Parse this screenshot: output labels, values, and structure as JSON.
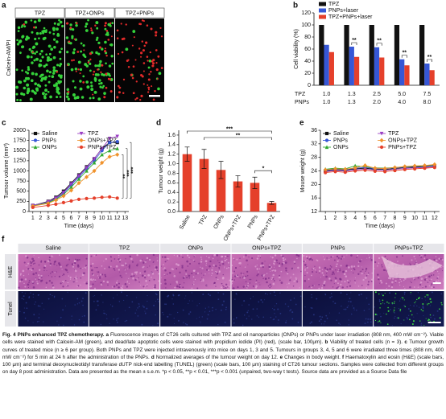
{
  "panel_a": {
    "label": "a",
    "ylabel": "Calcein-AM/PI",
    "columns": [
      "TPZ",
      "TPZ+ONPs",
      "TPZ+PNPs"
    ]
  },
  "chart_data": [
    {
      "panel_label": "b",
      "type": "grouped_bar",
      "ylabel": "Cell viability (%)",
      "ylim": [
        0,
        120
      ],
      "yticks": [
        0,
        20,
        40,
        60,
        80,
        100,
        120
      ],
      "series": [
        {
          "name": "TPZ",
          "color": "#111111",
          "values": [
            100,
            100,
            100,
            100,
            100
          ]
        },
        {
          "name": "PNPs+laser",
          "color": "#3657d6",
          "values": [
            67,
            64,
            63,
            43,
            36
          ]
        },
        {
          "name": "TPZ+PNPs+laser",
          "color": "#e5402b",
          "values": [
            55,
            47,
            46,
            33,
            25
          ]
        }
      ],
      "category_rows": [
        {
          "name": "TPZ",
          "labels": [
            "1.0",
            "1.3",
            "2.5",
            "5.0",
            "7.5"
          ]
        },
        {
          "name": "PNPs",
          "labels": [
            "1.0",
            "1.3",
            "2.0",
            "4.0",
            "8.0"
          ]
        }
      ],
      "annotations": [
        "**",
        "**",
        "**",
        "**"
      ]
    },
    {
      "panel_label": "c",
      "type": "line",
      "ylabel": "Tumour volume (mm³)",
      "xlabel": "Time (days)",
      "x": [
        1,
        3,
        4,
        5,
        6,
        7,
        8,
        9,
        10,
        11,
        12
      ],
      "xlim": [
        0.5,
        13.5
      ],
      "xticks": [
        1,
        2,
        3,
        4,
        5,
        6,
        7,
        8,
        9,
        10,
        11,
        12,
        13
      ],
      "ylim": [
        0,
        2000
      ],
      "yticks": [
        0,
        250,
        500,
        750,
        1000,
        1250,
        1500,
        1750,
        2000
      ],
      "series": [
        {
          "name": "Saline",
          "color": "#111111",
          "marker": "square",
          "values": [
            150,
            250,
            350,
            500,
            700,
            900,
            1100,
            1300,
            1550,
            1700,
            1700
          ]
        },
        {
          "name": "PNPs",
          "color": "#3657d6",
          "marker": "circle",
          "values": [
            150,
            230,
            320,
            450,
            650,
            850,
            1050,
            1250,
            1500,
            1700,
            1720
          ]
        },
        {
          "name": "ONPs",
          "color": "#2fa82f",
          "marker": "triangle-up",
          "values": [
            140,
            220,
            300,
            420,
            600,
            800,
            1000,
            1200,
            1400,
            1500,
            1550
          ]
        },
        {
          "name": "TPZ",
          "color": "#9b3fc4",
          "marker": "triangle-down",
          "values": [
            150,
            240,
            330,
            470,
            680,
            880,
            1080,
            1300,
            1550,
            1800,
            1850
          ]
        },
        {
          "name": "ONPs+TPZ",
          "color": "#f0922b",
          "marker": "diamond",
          "values": [
            130,
            200,
            280,
            380,
            520,
            700,
            850,
            1000,
            1200,
            1350,
            1400
          ]
        },
        {
          "name": "PNPs+TPZ",
          "color": "#e5402b",
          "marker": "circle",
          "values": [
            100,
            150,
            180,
            220,
            260,
            300,
            320,
            330,
            350,
            360,
            330
          ]
        }
      ],
      "annotations": [
        "**",
        "***",
        "***"
      ]
    },
    {
      "panel_label": "d",
      "type": "bar",
      "ylabel": "Tumour weight (g)",
      "categories": [
        "Saline",
        "TPZ",
        "ONPs",
        "ONPs+TPZ",
        "PNPs",
        "PNPs+TPZ"
      ],
      "values": [
        1.2,
        1.1,
        0.87,
        0.63,
        0.6,
        0.18
      ],
      "errors": [
        0.15,
        0.2,
        0.18,
        0.12,
        0.12,
        0.03
      ],
      "color": "#e5402b",
      "ylim": [
        0,
        1.7
      ],
      "yticks": [
        {
          "value": 0,
          "label": "0.0"
        },
        {
          "value": 0.2,
          "label": "0.2"
        },
        {
          "value": 0.4,
          "label": "0.4"
        },
        {
          "value": 0.6,
          "label": "0.6"
        },
        {
          "value": 0.8,
          "label": "0.8"
        },
        {
          "value": 1,
          "label": "1.0"
        },
        {
          "value": 1.2,
          "label": "1.2"
        },
        {
          "value": 1.4,
          "label": "1.4"
        },
        {
          "value": 1.6,
          "label": "1.6"
        }
      ],
      "annotations": [
        "***",
        "**",
        "*"
      ]
    },
    {
      "panel_label": "e",
      "type": "line",
      "ylabel": "Mouse weight (g)",
      "xlabel": "Time (days)",
      "x": [
        1,
        2,
        3,
        4,
        5,
        6,
        7,
        8,
        9,
        10,
        11,
        12
      ],
      "xlim": [
        0.5,
        12.5
      ],
      "xticks": [
        1,
        2,
        3,
        4,
        5,
        6,
        7,
        8,
        9,
        10,
        11,
        12
      ],
      "ylim": [
        12,
        36
      ],
      "yticks": [
        12,
        16,
        20,
        24,
        28,
        32,
        36
      ],
      "series": [
        {
          "name": "Saline",
          "color": "#111111",
          "marker": "square",
          "values": [
            24,
            24.3,
            24.2,
            24.6,
            24.8,
            24.5,
            24.4,
            24.7,
            25,
            25.1,
            25.3,
            25.5
          ]
        },
        {
          "name": "PNPs",
          "color": "#3657d6",
          "marker": "circle",
          "values": [
            24.2,
            24.5,
            24.4,
            24.8,
            25,
            24.7,
            24.6,
            24.9,
            25.1,
            25.3,
            25.4,
            25.6
          ]
        },
        {
          "name": "ONPs",
          "color": "#2fa82f",
          "marker": "triangle-up",
          "values": [
            24.5,
            24.8,
            24.6,
            25.5,
            25.2,
            24.9,
            24.8,
            25,
            25.2,
            25.4,
            25.5,
            25.8
          ]
        },
        {
          "name": "TPZ",
          "color": "#9b3fc4",
          "marker": "triangle-down",
          "values": [
            23.8,
            24.1,
            24,
            24.3,
            24.5,
            24.3,
            24.2,
            24.5,
            24.7,
            24.9,
            25,
            25.2
          ]
        },
        {
          "name": "ONPs+TPZ",
          "color": "#f0922b",
          "marker": "diamond",
          "values": [
            24.3,
            24.6,
            24.5,
            24.9,
            25.6,
            24.8,
            24.7,
            25,
            25.3,
            25.5,
            25.6,
            25.9
          ]
        },
        {
          "name": "PNPs+TPZ",
          "color": "#e5402b",
          "marker": "circle",
          "values": [
            23.5,
            23.8,
            23.6,
            24,
            24.2,
            23.9,
            23.8,
            24.1,
            24.4,
            24.6,
            24.8,
            25
          ]
        }
      ]
    }
  ],
  "panel_f": {
    "label": "f",
    "columns": [
      "Saline",
      "TPZ",
      "ONPs",
      "ONPs+TPZ",
      "PNPs",
      "PNPs+TPZ"
    ],
    "rows": [
      "H&E",
      "Tunel"
    ]
  },
  "caption": [
    {
      "text": "Fig. 4",
      "bold": true
    },
    {
      "text": " "
    },
    {
      "text": "PNPs enhanced TPZ chemotherapy.",
      "bold": true
    },
    {
      "text": " "
    },
    {
      "text": "a",
      "bold": true
    },
    {
      "text": " Fluorescence images of CT26 cells cultured with TPZ and oil nanoparticles (ONPs) or PNPs under laser irradiation (808 nm, 400 mW cm⁻²). Viable cells were stained with Calcein-AM (green), and dead/late apoptotic cells were stained with propidium iodide (PI) (red), (scale bar, 100μm). "
    },
    {
      "text": "b",
      "bold": true
    },
    {
      "text": " Viability of treated cells (n = 3). "
    },
    {
      "text": "c",
      "bold": true
    },
    {
      "text": " Tumour growth curves of treated mice (n ≥ 6 per group). Both PNPs and TPZ were injected intravenously into mice on days 1, 3 and 5. Tumours in groups 3, 4, 5 and 6 were irradiated three times (808 nm, 400 mW cm⁻²) for 5 min at 24 h after the administration of the PNPs. "
    },
    {
      "text": "d",
      "bold": true
    },
    {
      "text": " Normalized averages of the tumour weight on day 12. "
    },
    {
      "text": "e",
      "bold": true
    },
    {
      "text": " Changes in body weight. "
    },
    {
      "text": "f",
      "bold": true
    },
    {
      "text": " Haematoxylin and eosin (H&E) (scale bars, 100 μm) and terminal deoxynucleotidyl transferase dUTP nick-end labelling (TUNEL) (green) (scale bars, 100 μm) staining of CT26 tumour sections. Samples were collected from different groups on day 8 post administration. Data are presented as the mean ± s.e.m. *p < 0.05, **p < 0.01, ***p < 0.001 (unpaired, two-way t tests). Source data are provided as a Source Data file"
    }
  ]
}
